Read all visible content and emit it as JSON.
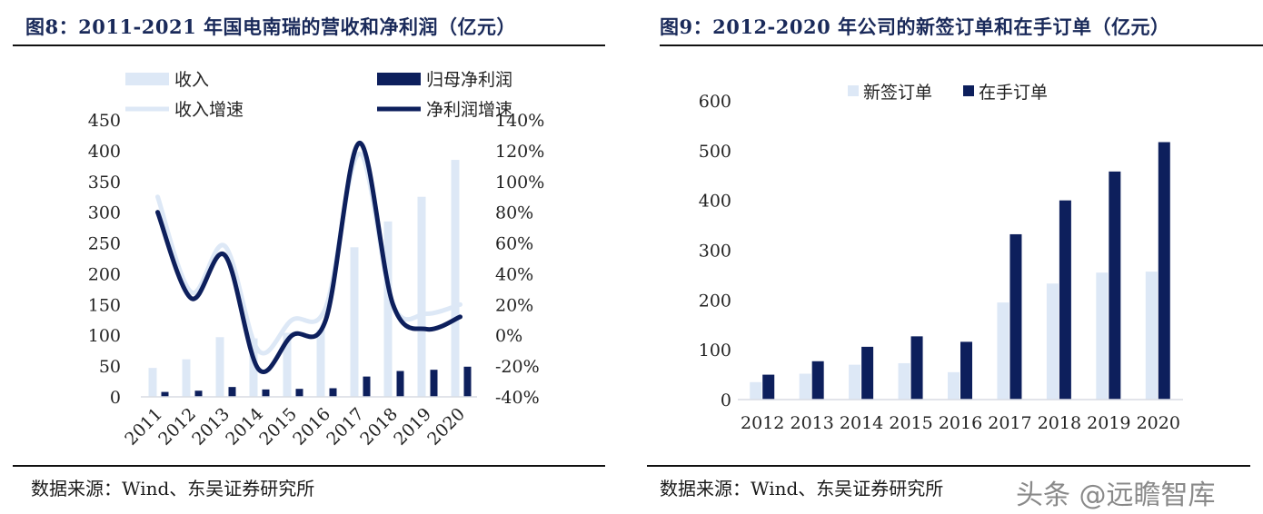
{
  "left": {
    "title": "图8：2011-2021 年国电南瑞的营收和净利润（亿元）",
    "source": "数据来源：Wind、东吴证券研究所",
    "chart_data": {
      "type": "bar",
      "categories": [
        "2011",
        "2012",
        "2013",
        "2014",
        "2015",
        "2016",
        "2017",
        "2018",
        "2019",
        "2020"
      ],
      "series": [
        {
          "name": "收入",
          "type": "bar",
          "axis": "left",
          "color": "#dde8f6",
          "values": [
            47,
            61,
            97,
            95,
            104,
            109,
            243,
            285,
            325,
            385
          ]
        },
        {
          "name": "归母净利润",
          "type": "bar",
          "axis": "left",
          "color": "#0d1f5c",
          "values": [
            8,
            10,
            16,
            12,
            13,
            14,
            33,
            42,
            44,
            49
          ]
        },
        {
          "name": "收入增速",
          "type": "line",
          "axis": "right",
          "color": "#dde8f6",
          "values": [
            90,
            28,
            58,
            -10,
            10,
            18,
            118,
            20,
            14,
            20
          ]
        },
        {
          "name": "净利润增速",
          "type": "line",
          "axis": "right",
          "color": "#0d1f5c",
          "values": [
            80,
            24,
            52,
            -22,
            0,
            10,
            125,
            20,
            4,
            12
          ]
        }
      ],
      "yleft": {
        "min": 0,
        "max": 450,
        "ticks": [
          "0",
          "50",
          "100",
          "150",
          "200",
          "250",
          "300",
          "350",
          "400",
          "450"
        ]
      },
      "yright": {
        "min": -40,
        "max": 140,
        "ticks": [
          "-40%",
          "-20%",
          "0%",
          "20%",
          "40%",
          "60%",
          "80%",
          "100%",
          "120%",
          "140%"
        ]
      },
      "grid": false,
      "legend": "top"
    }
  },
  "right": {
    "title": "图9：2012-2020 年公司的新签订单和在手订单（亿元）",
    "source": "数据来源：Wind、东吴证券研究所",
    "chart_data": {
      "type": "bar",
      "categories": [
        "2012",
        "2013",
        "2014",
        "2015",
        "2016",
        "2017",
        "2018",
        "2019",
        "2020"
      ],
      "series": [
        {
          "name": "新签订单",
          "color": "#dde8f6",
          "values": [
            35,
            52,
            70,
            73,
            55,
            195,
            233,
            255,
            257
          ]
        },
        {
          "name": "在手订单",
          "color": "#0d1f5c",
          "values": [
            50,
            77,
            106,
            127,
            116,
            332,
            400,
            458,
            517
          ]
        }
      ],
      "y": {
        "min": 0,
        "max": 600,
        "ticks": [
          "0",
          "100",
          "200",
          "300",
          "400",
          "500",
          "600"
        ]
      },
      "grid": false,
      "legend": "top"
    }
  },
  "watermark": "头条 @远瞻智库"
}
